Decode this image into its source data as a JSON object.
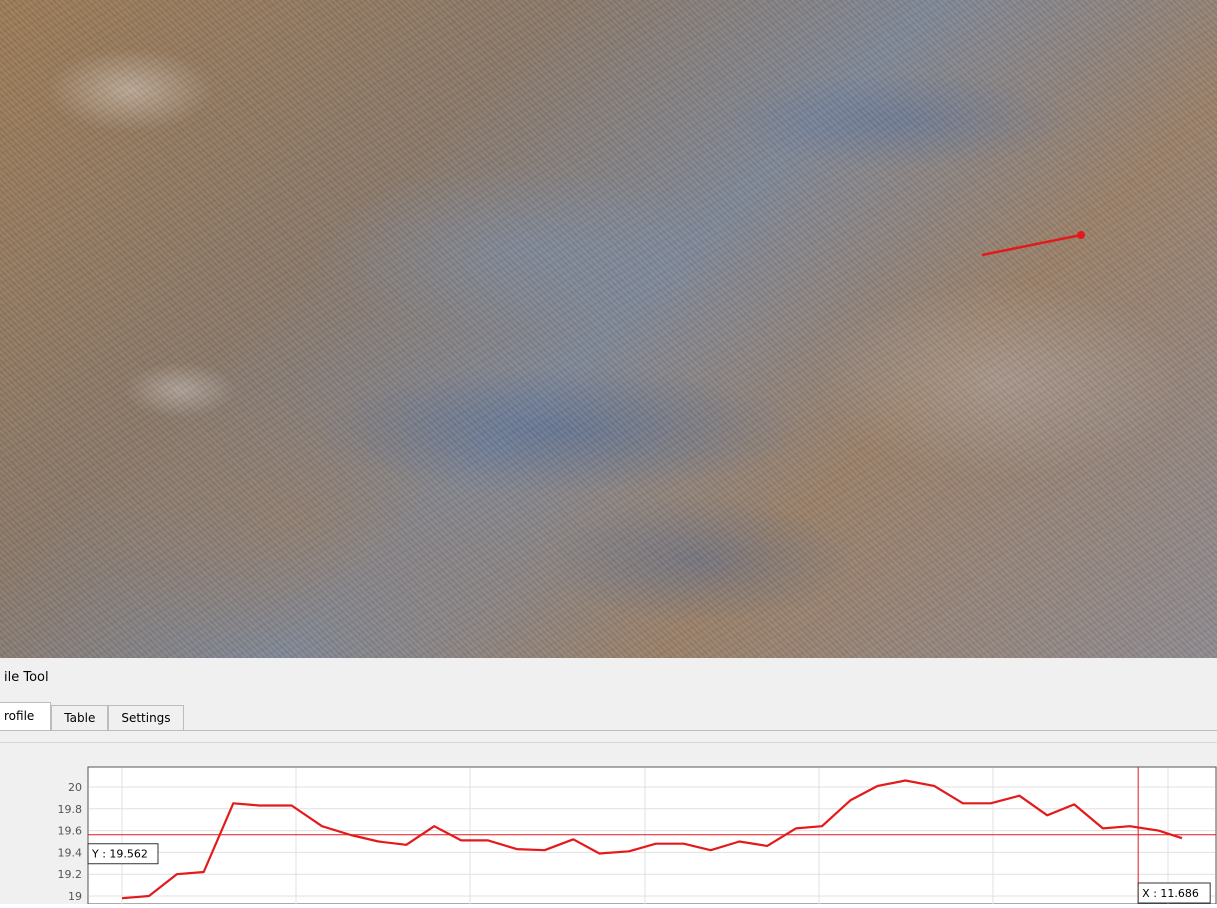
{
  "panel": {
    "title": "ile Tool",
    "tabs": [
      {
        "label": "rofile",
        "active": true
      },
      {
        "label": "Table",
        "active": false
      },
      {
        "label": "Settings",
        "active": false
      }
    ]
  },
  "colors": {
    "profile_line": "#e31a1c",
    "crosshair": "#e31a1c",
    "grid": "#e0e0e0"
  },
  "crosshair": {
    "y_readout": "Y : 19.562",
    "x_readout": "X : 11.686"
  },
  "chart_data": {
    "type": "line",
    "ylim": [
      18.9,
      20.12
    ],
    "xlim": [
      0,
      12.85
    ],
    "yticks": [
      "20",
      "19.8",
      "19.6",
      "19.4",
      "19.2",
      "19"
    ],
    "ytick_values": [
      20,
      19.8,
      19.6,
      19.4,
      19.2,
      19
    ],
    "grid": true,
    "series": [
      {
        "x": [
          0.0,
          0.31,
          0.63,
          0.94,
          1.28,
          1.58,
          1.95,
          2.3,
          2.63,
          2.95,
          3.27,
          3.59,
          3.9,
          4.21,
          4.54,
          4.86,
          5.19,
          5.49,
          5.83,
          6.14,
          6.46,
          6.77,
          7.1,
          7.42,
          7.75,
          8.05,
          8.38,
          8.69,
          9.01,
          9.34,
          9.67,
          9.99,
          10.32,
          10.64,
          10.95,
          11.28,
          11.59,
          11.92,
          12.19
        ],
        "y": [
          18.98,
          19.0,
          19.2,
          19.22,
          19.85,
          19.83,
          19.83,
          19.64,
          19.56,
          19.5,
          19.47,
          19.64,
          19.51,
          19.51,
          19.43,
          19.42,
          19.52,
          19.39,
          19.41,
          19.48,
          19.48,
          19.42,
          19.5,
          19.46,
          19.62,
          19.64,
          19.88,
          20.01,
          20.06,
          20.01,
          19.85,
          19.85,
          19.92,
          19.74,
          19.84,
          19.62,
          19.64,
          19.6,
          19.53
        ]
      }
    ],
    "crosshair": {
      "x": 11.686,
      "y": 19.562
    }
  }
}
